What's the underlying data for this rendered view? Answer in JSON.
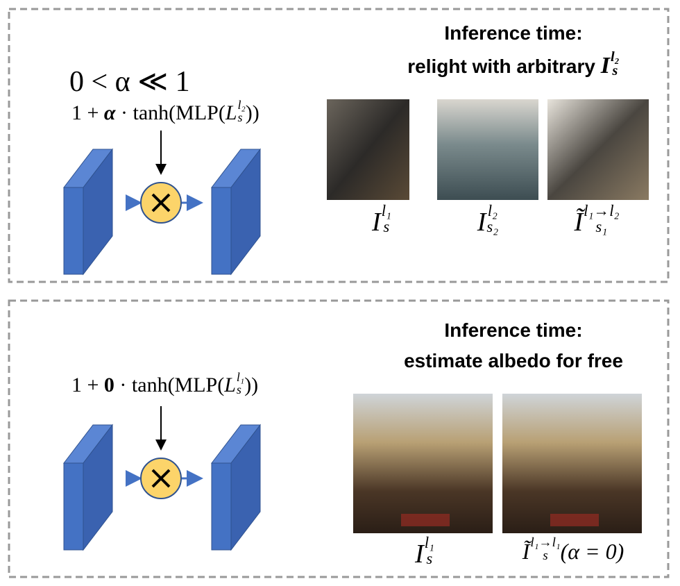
{
  "top": {
    "condition": "0 < α ≪ 1",
    "formula": {
      "lead": "1 + ",
      "factor": "α",
      "mid": " · tanh(MLP(",
      "base": "L",
      "sub": "s",
      "sup": "l₂",
      "after": "))"
    },
    "heading": {
      "line1": "Inference time:",
      "line2": "relight with arbitrary ",
      "base": "I",
      "sub": "s",
      "sup": "l₂"
    },
    "captions": [
      {
        "base": "I",
        "sub": "s",
        "sup": "l₁"
      },
      {
        "base": "I",
        "sub": "s₂",
        "sup": "l₂"
      },
      {
        "base": "Ĩ",
        "sub": "s₁",
        "sup": "l₁→l₂"
      }
    ]
  },
  "bottom": {
    "formula": {
      "lead": "1 + ",
      "factor": "0",
      "mid": " · tanh(MLP(",
      "base": "L",
      "sub": "s",
      "sup": "l₁",
      "after": "))"
    },
    "heading": {
      "line1": "Inference time:",
      "line2": "estimate albedo for free"
    },
    "captions": [
      {
        "base": "I",
        "sub": "s",
        "sup": "l₁"
      },
      {
        "base": "Ĩ",
        "sub": "s",
        "sup": "l₁→l₁",
        "after": "(α = 0)"
      }
    ]
  }
}
